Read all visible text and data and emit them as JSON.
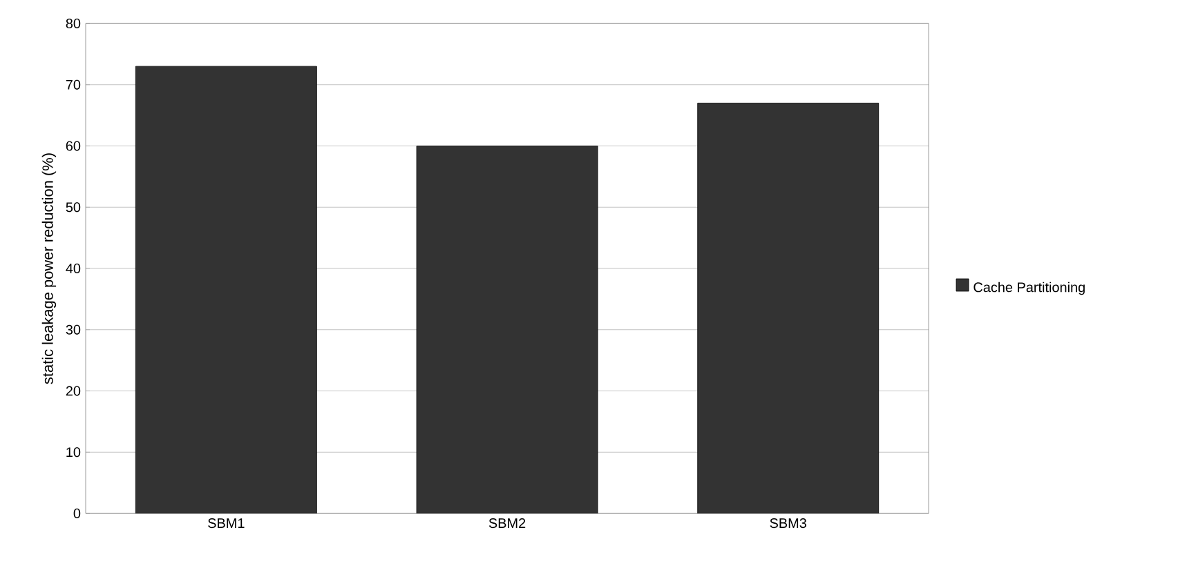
{
  "chart_data": {
    "type": "bar",
    "ylabel": "static leakage power reduction (%)",
    "categories": [
      "SBM1",
      "SBM2",
      "SBM3"
    ],
    "series": [
      {
        "name": "Cache Partitioning",
        "color": "#333333",
        "values": [
          73,
          60,
          67
        ]
      }
    ],
    "ylim": [
      0,
      80
    ],
    "yticks": [
      0,
      10,
      20,
      30,
      40,
      50,
      60,
      70,
      80
    ],
    "grid": "y",
    "legend": "right"
  }
}
